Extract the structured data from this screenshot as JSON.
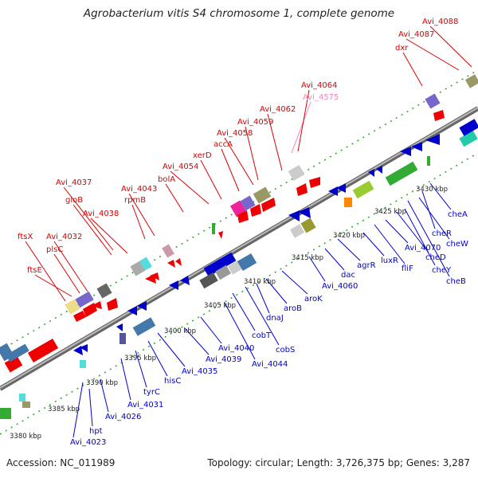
{
  "title": "Agrobacterium vitis S4 chromosome 1, complete genome",
  "footer": {
    "accession": "Accession: NC_011989",
    "summary": "Topology: circular; Length: 3,726,375 bp; Genes: 3,287"
  },
  "colors": {
    "forward_label": "#dd0000",
    "reverse_label": "#0000cc",
    "highlight_label": "#ee88bb",
    "backbone": "#999999",
    "tick": "#33aa33"
  },
  "scale": [
    "3380 kbp",
    "3385 kbp",
    "3390 kbp",
    "3395 kbp",
    "3400 kbp",
    "3405 kbp",
    "3410 kbp",
    "3415 kbp",
    "3420 kbp",
    "3425 kbp",
    "3430 kbp"
  ],
  "forward_labels": [
    "ftsE",
    "ftsX",
    "plsC",
    "Avi_4032",
    "gloB",
    "Avi_4037",
    "Avi_4038",
    "rpmB",
    "Avi_4043",
    "bolA",
    "Avi_4054",
    "xerD",
    "accA",
    "Avi_4058",
    "Avi_4059",
    "Avi_4062",
    "Avi_4575",
    "Avi_4064",
    "dxr",
    "Avi_4087",
    "Avi_4088"
  ],
  "reverse_labels": [
    "Avi_4023",
    "hpt",
    "Avi_4026",
    "Avi_4031",
    "tyrC",
    "hisC",
    "Avi_4035",
    "Avi_4039",
    "Avi_4040",
    "Avi_4044",
    "cobT",
    "cobS",
    "dnaJ",
    "aroB",
    "aroK",
    "Avi_4060",
    "dac",
    "agrR",
    "luxR",
    "fliF",
    "Avi_4070",
    "cheD",
    "cheY",
    "cheB",
    "cheW",
    "cheR",
    "cheA"
  ]
}
